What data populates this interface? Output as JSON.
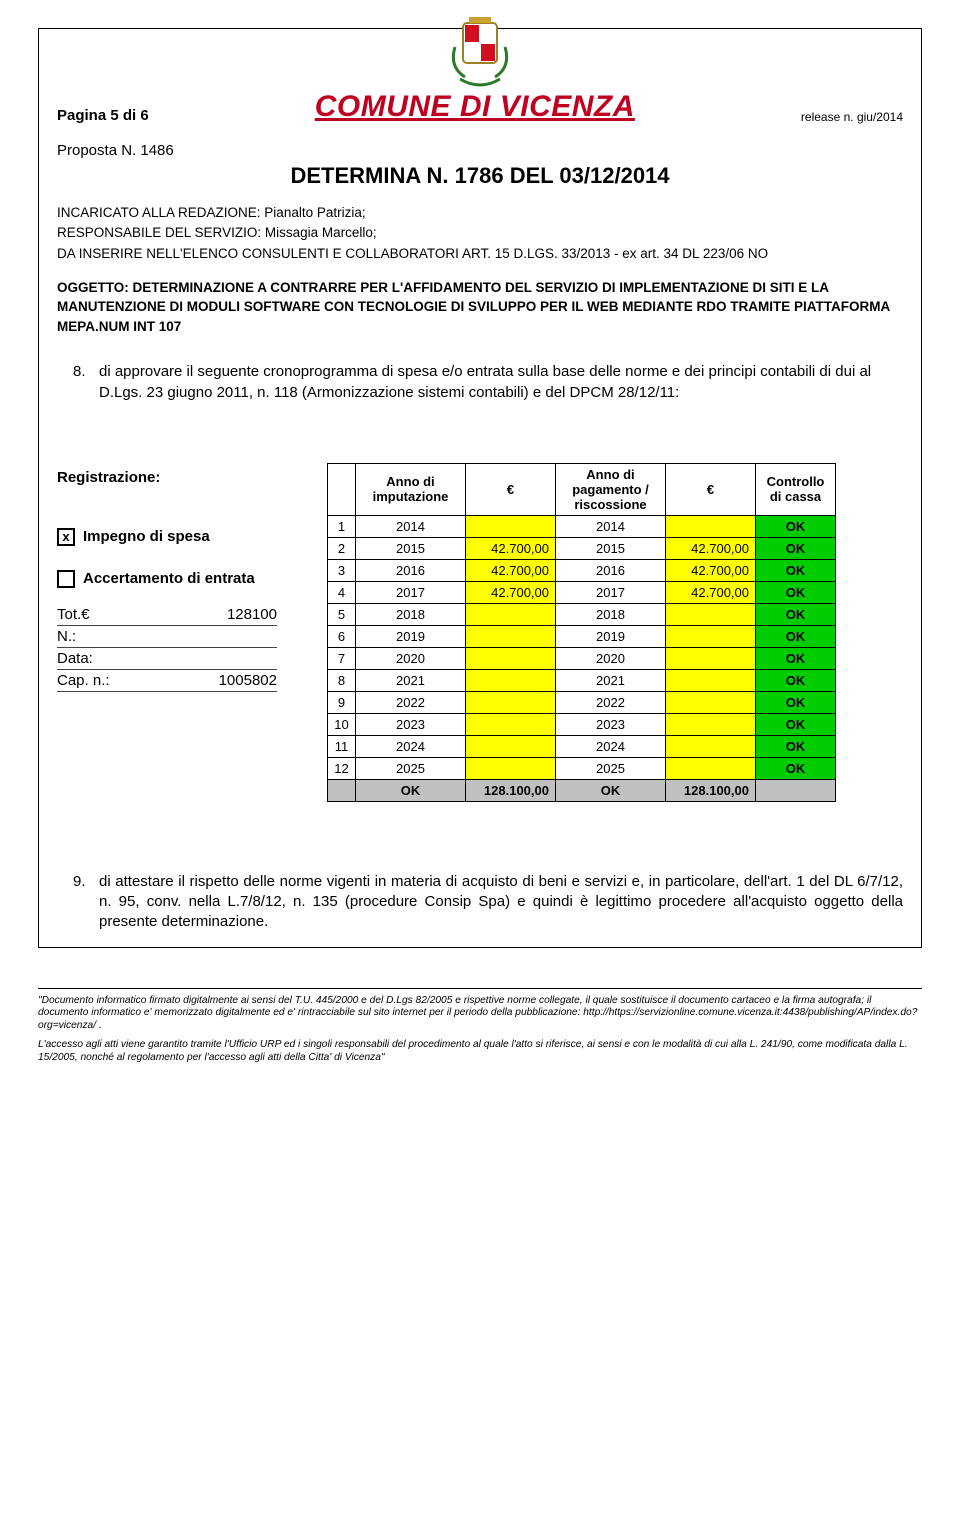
{
  "header": {
    "page_label": "Pagina 5 di 6",
    "title": "COMUNE DI VICENZA",
    "release": "release n. giu/2014",
    "proposta": "Proposta N. 1486",
    "determina": "DETERMINA N. 1786 DEL 03/12/2014"
  },
  "meta": {
    "line1": "INCARICATO ALLA REDAZIONE:   Pianalto Patrizia;",
    "line2": "RESPONSABILE DEL SERVIZIO:  Missagia Marcello;",
    "line3": "DA INSERIRE NELL'ELENCO CONSULENTI E COLLABORATORI ART. 15 D.LGS. 33/2013 -  ex art. 34 DL 223/06  NO"
  },
  "oggetto": "OGGETTO:  DETERMINAZIONE A CONTRARRE PER L'AFFIDAMENTO DEL SERVIZIO DI IMPLEMENTAZIONE DI SITI E LA MANUTENZIONE DI MODULI SOFTWARE CON TECNOLOGIE DI SVILUPPO PER IL WEB MEDIANTE RDO TRAMITE PIATTAFORMA MEPA.NUM INT 107",
  "para8": {
    "num": "8.",
    "text": "di approvare il seguente cronoprogramma di spesa e/o entrata sulla base delle norme e dei principi contabili di dui al D.Lgs. 23 giugno 2011, n. 118 (Armonizzazione sistemi contabili) e del DPCM 28/12/11:"
  },
  "reg": {
    "label": "Registrazione:",
    "impegno_mark": "x",
    "impegno": "Impegno di spesa",
    "accert": "Accertamento di entrata",
    "tot_label": "Tot.€",
    "tot_value": "128100",
    "n_label": "N.:",
    "n_value": "",
    "data_label": "Data:",
    "data_value": "",
    "cap_label": "Cap. n.:",
    "cap_value": "1005802"
  },
  "table": {
    "head": {
      "col1": "Anno di imputazione",
      "col2": "€",
      "col3": "Anno di pagamento / riscossione",
      "col4": "€",
      "col5": "Controllo di cassa"
    },
    "rows": [
      {
        "i": "1",
        "y1": "2014",
        "e1": "",
        "y2": "2014",
        "e2": "",
        "c": "OK",
        "cls": "green",
        "ecls": "yellow"
      },
      {
        "i": "2",
        "y1": "2015",
        "e1": "42.700,00",
        "y2": "2015",
        "e2": "42.700,00",
        "c": "OK",
        "cls": "green",
        "ecls": "yellow"
      },
      {
        "i": "3",
        "y1": "2016",
        "e1": "42.700,00",
        "y2": "2016",
        "e2": "42.700,00",
        "c": "OK",
        "cls": "green",
        "ecls": "yellow"
      },
      {
        "i": "4",
        "y1": "2017",
        "e1": "42.700,00",
        "y2": "2017",
        "e2": "42.700,00",
        "c": "OK",
        "cls": "green",
        "ecls": "yellow"
      },
      {
        "i": "5",
        "y1": "2018",
        "e1": "",
        "y2": "2018",
        "e2": "",
        "c": "OK",
        "cls": "green",
        "ecls": "yellow"
      },
      {
        "i": "6",
        "y1": "2019",
        "e1": "",
        "y2": "2019",
        "e2": "",
        "c": "OK",
        "cls": "green",
        "ecls": "yellow"
      },
      {
        "i": "7",
        "y1": "2020",
        "e1": "",
        "y2": "2020",
        "e2": "",
        "c": "OK",
        "cls": "green",
        "ecls": "yellow"
      },
      {
        "i": "8",
        "y1": "2021",
        "e1": "",
        "y2": "2021",
        "e2": "",
        "c": "OK",
        "cls": "green",
        "ecls": "yellow"
      },
      {
        "i": "9",
        "y1": "2022",
        "e1": "",
        "y2": "2022",
        "e2": "",
        "c": "OK",
        "cls": "green",
        "ecls": "yellow"
      },
      {
        "i": "10",
        "y1": "2023",
        "e1": "",
        "y2": "2023",
        "e2": "",
        "c": "OK",
        "cls": "green",
        "ecls": "yellow"
      },
      {
        "i": "11",
        "y1": "2024",
        "e1": "",
        "y2": "2024",
        "e2": "",
        "c": "OK",
        "cls": "green",
        "ecls": "yellow"
      },
      {
        "i": "12",
        "y1": "2025",
        "e1": "",
        "y2": "2025",
        "e2": "",
        "c": "OK",
        "cls": "green",
        "ecls": "yellow"
      }
    ],
    "totals": {
      "y1": "OK",
      "e1": "128.100,00",
      "y2": "OK",
      "e2": "128.100,00"
    }
  },
  "para9": {
    "num": "9.",
    "text": "di attestare il rispetto delle norme vigenti in materia di acquisto di beni e servizi e, in particolare, dell'art. 1 del DL 6/7/12, n. 95, conv. nella L.7/8/12, n. 135 (procedure Consip Spa) e quindi è legittimo procedere all'acquisto oggetto della presente determinazione."
  },
  "footer": {
    "p1": "\"Documento informatico firmato digitalmente ai sensi del T.U. 445/2000 e del D.Lgs 82/2005 e rispettive norme collegate, il quale sostituisce il documento cartaceo e la firma autografa; il documento informatico e' memorizzato digitalmente ed e' rintracciabile sul sito internet per il periodo della pubblicazione: http://https://servizionline.comune.vicenza.it:4438/publishing/AP/index.do?org=vicenza/ .",
    "p2": "L'accesso agli atti viene garantito tramite l'Ufficio URP ed i singoli responsabili del procedimento al quale l'atto si riferisce, ai sensi e con le modalità di cui alla L. 241/90, come modificata dalla L. 15/2005, nonché al regolamento per l'accesso agli atti della Citta' di Vicenza\""
  },
  "colors": {
    "red": "#c00020",
    "yellow": "#ffff00",
    "green": "#00cc00",
    "gray": "#c0c0c0"
  }
}
